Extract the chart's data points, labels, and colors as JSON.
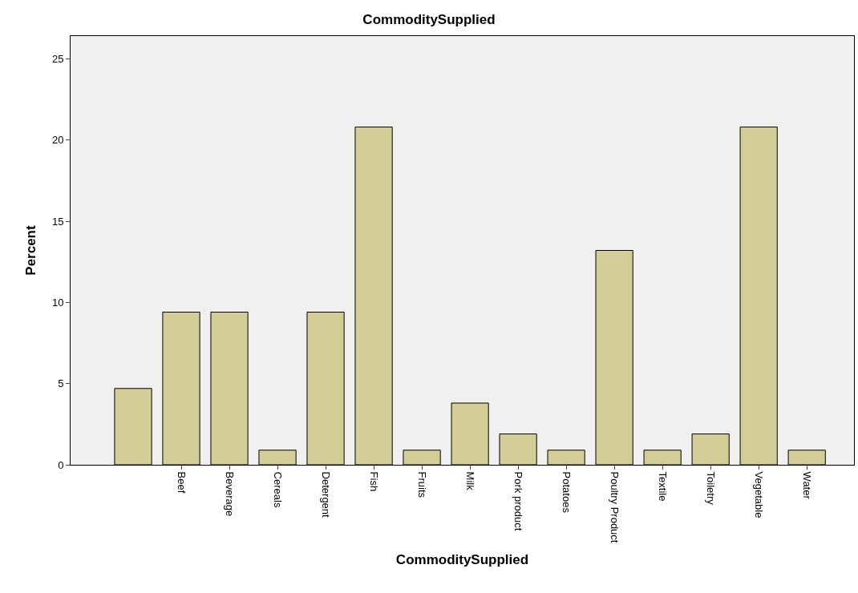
{
  "chart_data": {
    "type": "bar",
    "title": "CommoditySupplied",
    "xlabel": "CommoditySupplied",
    "ylabel": "Percent",
    "categories": [
      null,
      "Beef",
      "Beverage",
      "Cereals",
      "Detergent",
      "Fish",
      "Fruits",
      "Milk",
      "Pork product",
      "Potatoes",
      "Poultry Product",
      "Textile",
      "Toiletry",
      "Vegetable",
      "Water"
    ],
    "values": [
      4.7,
      9.4,
      9.4,
      0.9,
      9.4,
      20.8,
      0.9,
      3.8,
      1.9,
      0.9,
      13.2,
      0.9,
      1.9,
      20.8,
      0.9
    ],
    "color": "#d3ce97",
    "ylim": [
      0,
      26.4
    ],
    "yticks": [
      0,
      5,
      10,
      15,
      20,
      25
    ],
    "grid": false
  }
}
